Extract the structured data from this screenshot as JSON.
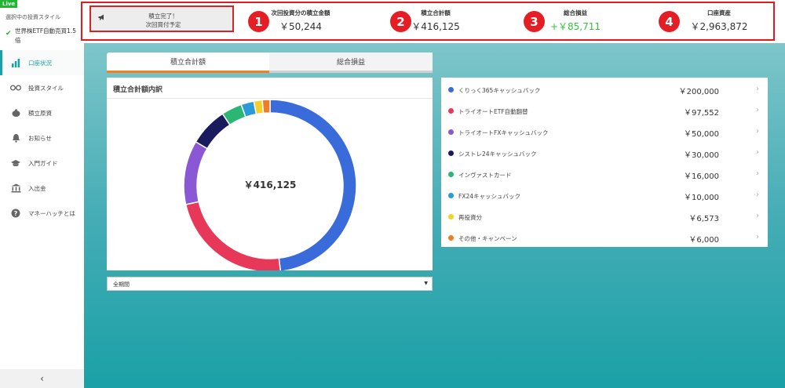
{
  "sidebar": {
    "live_badge": "Live",
    "style_caption": "選択中の投資スタイル",
    "style_name": "世界株ETF自動売買1.5倍",
    "nav": [
      {
        "label": "口座状況",
        "icon": "bar-chart-icon",
        "active": true
      },
      {
        "label": "投資スタイル",
        "icon": "glasses-icon"
      },
      {
        "label": "積立原資",
        "icon": "piggy-bank-icon"
      },
      {
        "label": "お知らせ",
        "icon": "bell-icon"
      },
      {
        "label": "入門ガイド",
        "icon": "graduation-cap-icon"
      },
      {
        "label": "入出金",
        "icon": "bank-icon"
      },
      {
        "label": "マネーハッチとは",
        "icon": "help-circle-icon"
      }
    ],
    "collapse_glyph": "‹"
  },
  "header": {
    "notice_line1": "積立完了！",
    "notice_line2": "次回買付予定",
    "stats": [
      {
        "number": "1",
        "label": "次回投資分の積立金額",
        "value": "￥50,244"
      },
      {
        "number": "2",
        "label": "積立合計額",
        "value": "￥416,125"
      },
      {
        "number": "3",
        "label": "総合損益",
        "value": "+￥85,711"
      },
      {
        "number": "4",
        "label": "口座資産",
        "value": "￥2,963,872"
      }
    ]
  },
  "tabs": [
    "積立合計額",
    "総合損益"
  ],
  "card": {
    "title": "積立合計額内訳",
    "center_total": "￥416,125"
  },
  "period_select": {
    "value": "全期間"
  },
  "breakdown": [
    {
      "name": "くりっく365キャッシュバック",
      "amount": "￥200,000",
      "color": "#3a6bdb"
    },
    {
      "name": "トライオートETF自動翻替",
      "amount": "￥97,552",
      "color": "#e8385a"
    },
    {
      "name": "トライオートFXキャッシュバック",
      "amount": "￥50,000",
      "color": "#8a58d4"
    },
    {
      "name": "シストレ24キャッシュバック",
      "amount": "￥30,000",
      "color": "#1a1a5e"
    },
    {
      "name": "インヴァストカード",
      "amount": "￥16,000",
      "color": "#2bb673"
    },
    {
      "name": "FX24キャッシュバック",
      "amount": "￥10,000",
      "color": "#2b9ad8"
    },
    {
      "name": "再投資分",
      "amount": "￥6,573",
      "color": "#f5d02b"
    },
    {
      "name": "その他・キャンペーン",
      "amount": "￥6,000",
      "color": "#f07c2a"
    }
  ],
  "chart_data": {
    "type": "pie",
    "title": "積立合計額内訳",
    "categories": [
      "くりっく365キャッシュバック",
      "トライオートETF自動翻替",
      "トライオートFXキャッシュバック",
      "シストレ24キャッシュバック",
      "インヴァストカード",
      "FX24キャッシュバック",
      "再投資分",
      "その他・キャンペーン"
    ],
    "values": [
      200000,
      97552,
      50000,
      30000,
      16000,
      10000,
      6573,
      6000
    ],
    "colors": [
      "#3a6bdb",
      "#e8385a",
      "#8a58d4",
      "#1a1a5e",
      "#2bb673",
      "#2b9ad8",
      "#f5d02b",
      "#f07c2a"
    ],
    "donut": true,
    "center_label": "￥416,125"
  }
}
